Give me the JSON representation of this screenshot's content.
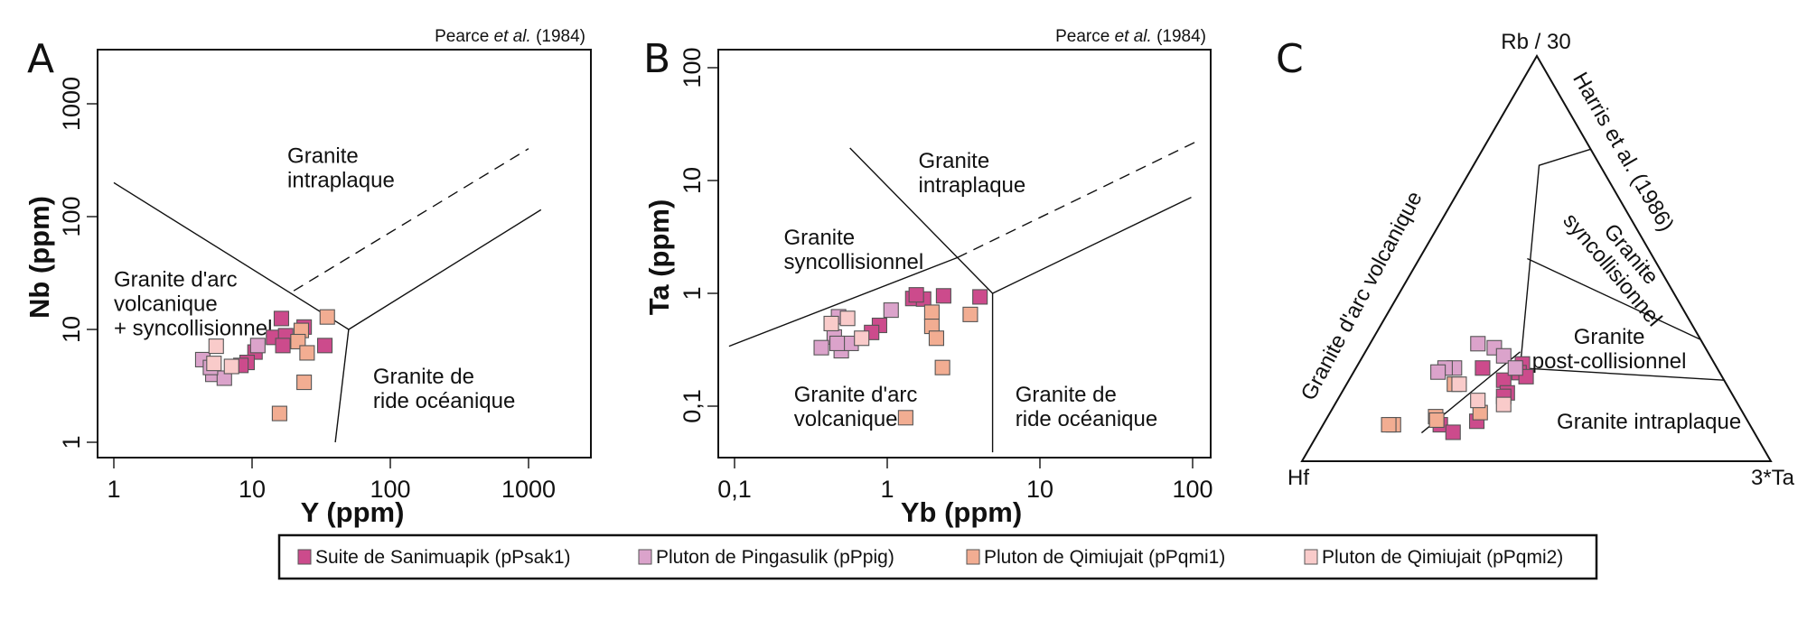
{
  "colors": {
    "Suite de Sanimuapik (pPsak1)": "#cc4b8c",
    "Pluton de Pingasulik (pPpig)": "#dba3cb",
    "Pluton de Qimiujait (pPqmi1)": "#f2ad92",
    "Pluton de Qimiujait (pPqmi2)": "#f9cbca"
  },
  "legend": {
    "items": [
      {
        "label": "Suite de Sanimuapik (pPsak1)"
      },
      {
        "label": "Pluton de Pingasulik (pPpig)"
      },
      {
        "label": "Pluton de Qimiujait (pPqmi1)"
      },
      {
        "label": "Pluton de Qimiujait (pPqmi2)"
      }
    ]
  },
  "chart_data": [
    {
      "panel": "A",
      "type": "scatter",
      "scale": "log-log",
      "citation": {
        "author": "Pearce",
        "etal": "et al.",
        "year": "(1984)"
      },
      "xlabel": "Y (ppm)",
      "ylabel": "Nb (ppm)",
      "xlim": [
        0.76,
        2700
      ],
      "ylim": [
        0.73,
        2900
      ],
      "xticks": [
        {
          "v": 1,
          "label": "1"
        },
        {
          "v": 10,
          "label": "10"
        },
        {
          "v": 100,
          "label": "100"
        },
        {
          "v": 1000,
          "label": "1000"
        }
      ],
      "yticks": [
        {
          "v": 1,
          "label": "1"
        },
        {
          "v": 10,
          "label": "10"
        },
        {
          "v": 100,
          "label": "100"
        },
        {
          "v": 1000,
          "label": "1000"
        }
      ],
      "boundaries": [
        {
          "style": "solid",
          "points": [
            [
              1,
              200
            ],
            [
              50,
              10
            ],
            [
              1230,
              115
            ]
          ]
        },
        {
          "style": "solid",
          "points": [
            [
              50,
              10
            ],
            [
              40,
              1
            ]
          ]
        },
        {
          "style": "dashed",
          "points": [
            [
              20,
              22
            ],
            [
              1000,
              400
            ]
          ]
        }
      ],
      "regions": [
        {
          "lines": [
            "Granite",
            "intraplaque"
          ],
          "at": [
            18,
            300
          ]
        },
        {
          "lines": [
            "Granite d'arc",
            "volcanique",
            "+ syncollisionnel"
          ],
          "at": [
            1,
            24
          ]
        },
        {
          "lines": [
            "Granite de",
            "ride océanique"
          ],
          "at": [
            75,
            3.3
          ]
        }
      ],
      "series": [
        {
          "name": "Suite de Sanimuapik (pPsak1)",
          "points": [
            [
              16.3,
              12.5
            ],
            [
              23.8,
              10.5
            ],
            [
              14.3,
              8.5
            ],
            [
              17.5,
              8.8
            ],
            [
              16.7,
              7.2
            ],
            [
              33.6,
              7.2
            ],
            [
              10.5,
              6.3
            ],
            [
              9.2,
              5.1
            ],
            [
              8.3,
              4.8
            ]
          ]
        },
        {
          "name": "Pluton de Pingasulik (pPpig)",
          "points": [
            [
              4.4,
              5.4
            ],
            [
              5.2,
              4.0
            ],
            [
              6.3,
              3.7
            ],
            [
              11,
              7.2
            ],
            [
              5.0,
              4.6
            ]
          ]
        },
        {
          "name": "Pluton de Qimiujait (pPqmi1)",
          "points": [
            [
              35,
              12.9
            ],
            [
              22.7,
              9.8
            ],
            [
              21.5,
              7.8
            ],
            [
              25,
              6.2
            ],
            [
              23.8,
              3.4
            ],
            [
              15.8,
              1.8
            ]
          ]
        },
        {
          "name": "Pluton de Qimiujait (pPqmi2)",
          "points": [
            [
              5.5,
              7.1
            ],
            [
              5.3,
              5.0
            ],
            [
              7.1,
              4.7
            ]
          ]
        }
      ]
    },
    {
      "panel": "B",
      "type": "scatter",
      "scale": "log-log",
      "citation": {
        "author": "Pearce",
        "etal": "et al.",
        "year": "(1984)"
      },
      "xlabel": "Yb (ppm)",
      "ylabel": "Ta (ppm)",
      "xlim": [
        0.078,
        132
      ],
      "ylim": [
        0.036,
        142
      ],
      "xticks": [
        {
          "v": 0.1,
          "label": "0,1"
        },
        {
          "v": 1,
          "label": "1"
        },
        {
          "v": 10,
          "label": "10"
        },
        {
          "v": 100,
          "label": "100"
        }
      ],
      "yticks": [
        {
          "v": 0.1,
          "label": "0,1"
        },
        {
          "v": 1,
          "label": "1"
        },
        {
          "v": 10,
          "label": "10"
        },
        {
          "v": 100,
          "label": "100"
        }
      ],
      "boundaries": [
        {
          "style": "solid",
          "points": [
            [
              0.092,
              0.34
            ],
            [
              2.87,
              2.07
            ]
          ]
        },
        {
          "style": "dashed",
          "points": [
            [
              2.87,
              2.07
            ],
            [
              108,
              22.4
            ]
          ]
        },
        {
          "style": "solid",
          "points": [
            [
              0.57,
              19.4
            ],
            [
              4.9,
              1
            ],
            [
              98,
              7.1
            ]
          ]
        },
        {
          "style": "solid",
          "points": [
            [
              4.9,
              1
            ],
            [
              4.9,
              0.039
            ]
          ]
        }
      ],
      "regions": [
        {
          "lines": [
            "Granite",
            "intraplaque"
          ],
          "at": [
            1.6,
            13
          ]
        },
        {
          "lines": [
            "Granite",
            "syncollisionnel"
          ],
          "at": [
            0.21,
            2.7
          ]
        },
        {
          "lines": [
            "Granite d'arc",
            "volcanique"
          ],
          "at": [
            0.245,
            0.11
          ]
        },
        {
          "lines": [
            "Granite de",
            "ride océanique"
          ],
          "at": [
            6.9,
            0.11
          ]
        }
      ],
      "series": [
        {
          "name": "Suite de Sanimuapik (pPsak1)",
          "points": [
            [
              1.47,
              0.9
            ],
            [
              1.73,
              0.89
            ],
            [
              1.55,
              0.97
            ],
            [
              2.34,
              0.95
            ],
            [
              4.05,
              0.93
            ],
            [
              0.89,
              0.52
            ],
            [
              0.79,
              0.45
            ]
          ]
        },
        {
          "name": "Pluton de Pingasulik (pPpig)",
          "points": [
            [
              1.06,
              0.71
            ],
            [
              0.48,
              0.62
            ],
            [
              0.45,
              0.41
            ],
            [
              0.37,
              0.33
            ],
            [
              0.5,
              0.31
            ],
            [
              0.58,
              0.36
            ],
            [
              0.47,
              0.36
            ]
          ]
        },
        {
          "name": "Pluton de Qimiujait (pPqmi1)",
          "points": [
            [
              1.96,
              0.68
            ],
            [
              1.96,
              0.51
            ],
            [
              2.1,
              0.4
            ],
            [
              3.5,
              0.65
            ],
            [
              2.3,
              0.22
            ],
            [
              1.32,
              0.079
            ]
          ]
        },
        {
          "name": "Pluton de Qimiujait (pPqmi2)",
          "points": [
            [
              0.43,
              0.54
            ],
            [
              0.55,
              0.6
            ],
            [
              0.68,
              0.4
            ]
          ]
        }
      ]
    },
    {
      "panel": "C",
      "type": "ternary",
      "citation": "Harris et al. (1986)",
      "apices": {
        "top": "Rb / 30",
        "left": "Hf",
        "right": "3*Ta"
      },
      "point_order": "[Hf, Rb/30, 3*Ta]",
      "boundaries": [
        {
          "style": "solid",
          "points": [
            [
              0.0,
              0.77,
              0.23
            ],
            [
              0.13,
              0.73,
              0.14
            ],
            [
              0.42,
              0.23,
              0.35
            ],
            [
              0.0,
              0.2,
              0.8
            ]
          ]
        },
        {
          "style": "solid",
          "points": [
            [
              0.27,
              0.5,
              0.23
            ],
            [
              0.0,
              0.3,
              0.7
            ]
          ]
        },
        {
          "style": "solid",
          "points": [
            [
              0.71,
              0.07,
              0.22
            ],
            [
              0.4,
              0.27,
              0.33
            ]
          ]
        }
      ],
      "regions": [
        {
          "lines": [
            "Granite d'arc volcanique"
          ],
          "at": [
            0.66,
            0.4,
            -0.06
          ],
          "rotate": -62
        },
        {
          "lines": [
            "Granite",
            "syncollisionnel"
          ],
          "at": [
            0.06,
            0.5,
            0.44
          ],
          "rotate": 50
        },
        {
          "lines": [
            "Granite",
            "post-collisionnel"
          ],
          "at": [
            0.2,
            0.29,
            0.51
          ]
        },
        {
          "lines": [
            "Granite intraplaque"
          ],
          "at": [
            0.22,
            0.08,
            0.7
          ]
        }
      ],
      "series": [
        {
          "name": "Suite de Sanimuapik (pPsak1)",
          "points": [
            [
              0.5,
              0.23,
              0.27
            ],
            [
              0.41,
              0.24,
              0.35
            ],
            [
              0.46,
              0.23,
              0.32
            ],
            [
              0.45,
              0.22,
              0.34
            ],
            [
              0.47,
              0.2,
              0.33
            ],
            [
              0.51,
              0.18,
              0.32
            ],
            [
              0.49,
              0.16,
              0.35
            ],
            [
              0.61,
              0.11,
              0.29
            ],
            [
              0.66,
              0.09,
              0.25
            ],
            [
              0.61,
              0.06,
              0.32
            ]
          ]
        },
        {
          "name": "Pluton de Pingasulik (pPpig)",
          "points": [
            [
              0.48,
              0.29,
              0.23
            ],
            [
              0.45,
              0.28,
              0.27
            ],
            [
              0.44,
              0.26,
              0.3
            ],
            [
              0.56,
              0.23,
              0.21
            ],
            [
              0.58,
              0.23,
              0.19
            ],
            [
              0.6,
              0.22,
              0.18
            ],
            [
              0.43,
              0.23,
              0.34
            ]
          ]
        },
        {
          "name": "Pluton de Qimiujait (pPqmi1)",
          "points": [
            [
              0.58,
              0.19,
              0.23
            ],
            [
              0.56,
              0.12,
              0.32
            ],
            [
              0.66,
              0.11,
              0.23
            ],
            [
              0.63,
              0.09,
              0.27
            ],
            [
              0.76,
              0.09,
              0.15
            ],
            [
              0.77,
              0.09,
              0.14
            ]
          ]
        },
        {
          "name": "Pluton de Qimiujait (pPqmi2)",
          "points": [
            [
              0.55,
              0.15,
              0.3
            ],
            [
              0.5,
              0.14,
              0.36
            ],
            [
              0.57,
              0.19,
              0.24
            ]
          ]
        }
      ]
    }
  ]
}
